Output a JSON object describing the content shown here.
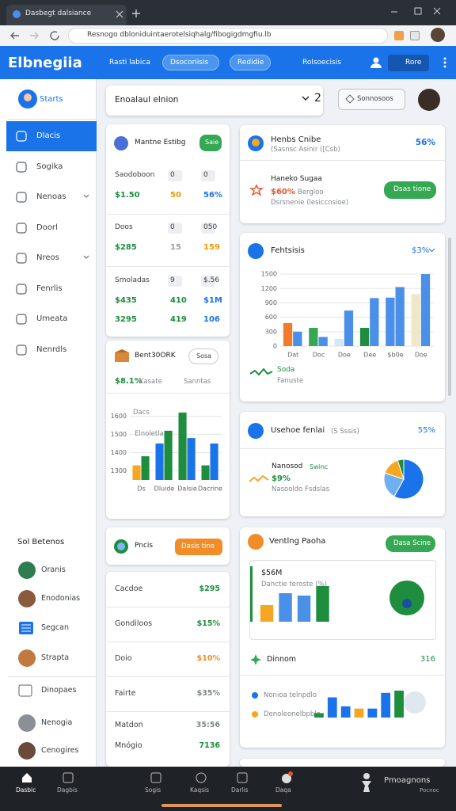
{
  "browser": {
    "tab_title": "Dasbegt dalsiance",
    "url": "Resnogo dbloniduintaerotelsiqhalg/fibogigdmgfiu.lb"
  },
  "header": {
    "logo": "Elbnegiia",
    "nav": [
      "Rasti labica",
      "Dsocoriisis",
      "Redidie",
      "Rolsoecisis"
    ],
    "button": "Rore"
  },
  "sidebar": {
    "user": "Starts",
    "items": [
      "Dlacis",
      "Sogika",
      "Nenoas",
      "Doorl",
      "Nreos",
      "Fenrlis",
      "Umeata",
      "Nenrdls"
    ],
    "section": "Sol Betenos",
    "people": [
      "Oranis",
      "Enodonias",
      "Segcan",
      "Strapta",
      "Dinopaes",
      "Nenogia",
      "Cenogires"
    ]
  },
  "toolbar": {
    "search": "Enoalaul elnion",
    "count": "2",
    "button": "Sonnosoos"
  },
  "stats_card": {
    "title": "Mantne Estibg",
    "badge": "Saie",
    "rows": [
      [
        "Saodoboon",
        "0",
        "0"
      ],
      [
        "$1.50",
        "50",
        "56%"
      ],
      [
        "Doos",
        "0",
        "050"
      ],
      [
        "$285",
        "15",
        "159"
      ],
      [
        "Smoladas",
        "9",
        "$.56"
      ],
      [
        "$435",
        "410",
        "$1M"
      ],
      [
        "3295",
        "419",
        "106"
      ]
    ]
  },
  "trend_card": {
    "title": "Bent30ORK",
    "button": "Sosa",
    "stat": "$8.1%",
    "stat_label": "Kasate",
    "note": "Sanntas",
    "chart": {
      "type": "bar",
      "labels": [
        "Dacs",
        "Elnoletla"
      ],
      "categories": [
        "Ds",
        "Dluide",
        "Dalsie",
        "Dacrine"
      ],
      "ylim": [
        1250,
        1650
      ],
      "yticks": [
        1300,
        1400,
        1500,
        1600
      ],
      "series": [
        {
          "colors": [
            "#f5a623",
            "#1a73e8",
            "#1e8e3e",
            "#1e8e3e"
          ],
          "values": [
            1330,
            1450,
            1620,
            1330
          ]
        },
        {
          "colors": [
            "#1e8e3e",
            "#1e8e3e",
            "#1a73e8",
            "#1a73e8"
          ],
          "values": [
            1380,
            1520,
            1480,
            1450
          ]
        }
      ]
    }
  },
  "promo_card": {
    "title": "Pncis",
    "button": "Dasis tine"
  },
  "table": {
    "rows": [
      [
        "Cacdoe",
        "$295"
      ],
      [
        "Gondiloos",
        "$15%"
      ],
      [
        "Doio",
        "$10%"
      ],
      [
        "Fairte",
        "$35%"
      ],
      [
        "Matdon",
        "35:56"
      ],
      [
        "Mnógio",
        "7136"
      ]
    ]
  },
  "summary_card": {
    "title": "Henbs Cnibe",
    "subtitle": "(Sasnsc Asinir ([Csb)",
    "value": "56%",
    "item_title": "Haneko Sugaa",
    "item_value": "$60%",
    "item_note": "Bergloo",
    "item_sub": "Dsrsnenie (lesiccnsioe)",
    "button": "Dsas tione"
  },
  "bar_card": {
    "title": "Fehtsisis",
    "value": "$3%",
    "legend_title": "Soda",
    "legend_sub": "Fanuste",
    "chart": {
      "type": "bar",
      "categories": [
        "Dat",
        "Doc",
        "Doe",
        "Dee",
        "$b0e",
        "Doe"
      ],
      "ylim": [
        0,
        1600
      ],
      "yticks": [
        0,
        300,
        600,
        900,
        1200,
        1500
      ],
      "series": [
        {
          "colors": [
            "#f07b2a",
            "#34a853",
            "#d6e6f7",
            "#1e8e3e",
            "#4a8fe8",
            "#f0e6c8"
          ],
          "values": [
            480,
            380,
            150,
            380,
            1010,
            1080
          ]
        },
        {
          "color": "#4a8fe8",
          "values": [
            300,
            190,
            740,
            1000,
            1230,
            1500
          ]
        }
      ]
    }
  },
  "pie_card": {
    "title": "Usehoe fenlai",
    "subtitle": "(S Sssis)",
    "value": "55%",
    "item_title": "Nanosod",
    "item_tag": "Swinc",
    "item_value": "$9%",
    "item_sub": "Nasooldo Fsdslas",
    "chart": {
      "type": "pie",
      "values": [
        58,
        22,
        15,
        5
      ],
      "colors": [
        "#1a73e8",
        "#6fb0f2",
        "#f5a623",
        "#1e8e3e"
      ]
    }
  },
  "activity_card": {
    "title": "Ventlng Paoha",
    "button": "Dasa Scine",
    "stat": "$56M",
    "stat_label": "Danctie teroste (%)",
    "chart": {
      "type": "bar",
      "series": [
        {
          "colors": [
            "#f5a623",
            "#4a8fe8",
            "#4a8fe8",
            "#1e8e3e"
          ],
          "values": [
            35,
            60,
            55,
            75
          ]
        }
      ]
    },
    "list_title": "Dinnom",
    "list_value": "316",
    "legend": [
      "Nonioa telnpdlo",
      "Denoleonelbpblo"
    ],
    "list_chart": {
      "type": "bar",
      "series": [
        {
          "colors": [
            "#1e8e3e",
            "#1a73e8",
            "#1a73e8",
            "#f5a623",
            "#1a73e8",
            "#1a73e8",
            "#1e8e3e"
          ],
          "values": [
            10,
            45,
            25,
            20,
            20,
            55,
            60
          ]
        }
      ]
    }
  },
  "bottom_nav": {
    "items": [
      "Dasbic",
      "Dagbis",
      "Sogis",
      "Kaqsis",
      "Darlis",
      "Daqa"
    ],
    "account": "Pmoagnons",
    "account_sub": "Pocnoc"
  }
}
